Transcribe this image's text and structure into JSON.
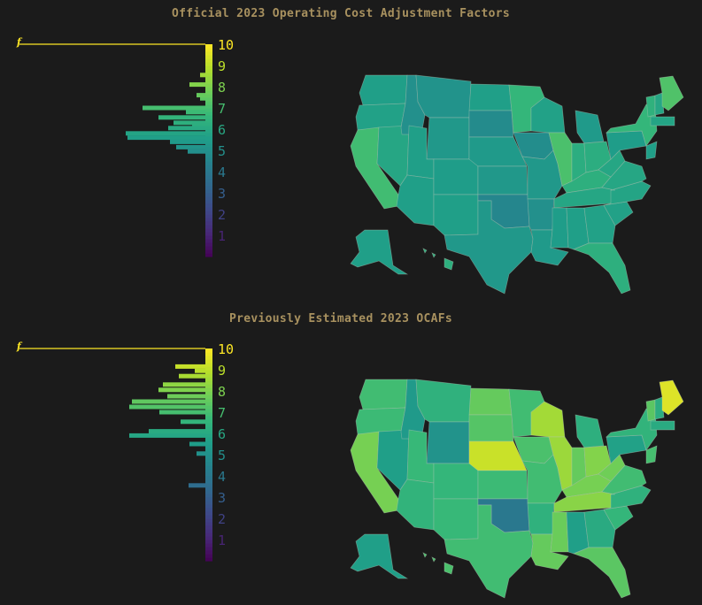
{
  "panels": [
    {
      "title": "Official 2023 Operating Cost Adjustment Factors",
      "histogram_label": "f",
      "colorbar_ticks": [
        "1",
        "2",
        "3",
        "4",
        "5",
        "6",
        "7",
        "8",
        "9",
        "10"
      ],
      "histogram_bins": [
        {
          "v": 7.45,
          "n": 6
        },
        {
          "v": 7.0,
          "n": 71
        },
        {
          "v": 6.8,
          "n": 22
        },
        {
          "v": 6.55,
          "n": 53
        },
        {
          "v": 6.3,
          "n": 36
        },
        {
          "v": 6.05,
          "n": 42
        },
        {
          "v": 5.8,
          "n": 90
        },
        {
          "v": 5.6,
          "n": 88
        },
        {
          "v": 5.4,
          "n": 40
        },
        {
          "v": 5.15,
          "n": 33
        },
        {
          "v": 4.95,
          "n": 20
        },
        {
          "v": 8.1,
          "n": 18
        },
        {
          "v": 8.55,
          "n": 6
        },
        {
          "v": 7.6,
          "n": 10
        },
        {
          "v": 6.25,
          "n": 15
        }
      ],
      "states": [
        {
          "id": "WA",
          "v": 5.6
        },
        {
          "id": "OR",
          "v": 5.7
        },
        {
          "id": "CA",
          "v": 6.9
        },
        {
          "id": "NV",
          "v": 5.9
        },
        {
          "id": "ID",
          "v": 5.0
        },
        {
          "id": "MT",
          "v": 5.1
        },
        {
          "id": "WY",
          "v": 5.3
        },
        {
          "id": "UT",
          "v": 5.6
        },
        {
          "id": "AZ",
          "v": 5.6
        },
        {
          "id": "CO",
          "v": 5.5
        },
        {
          "id": "NM",
          "v": 5.6
        },
        {
          "id": "ND",
          "v": 5.6
        },
        {
          "id": "SD",
          "v": 4.8
        },
        {
          "id": "NE",
          "v": 5.4
        },
        {
          "id": "KS",
          "v": 5.3
        },
        {
          "id": "OK",
          "v": 4.6
        },
        {
          "id": "TX",
          "v": 5.3
        },
        {
          "id": "MN",
          "v": 6.6
        },
        {
          "id": "IA",
          "v": 4.9
        },
        {
          "id": "MO",
          "v": 5.3
        },
        {
          "id": "AR",
          "v": 5.0
        },
        {
          "id": "LA",
          "v": 5.4
        },
        {
          "id": "WI",
          "v": 5.7
        },
        {
          "id": "IL",
          "v": 7.1
        },
        {
          "id": "IN",
          "v": 6.2
        },
        {
          "id": "MI",
          "v": 5.4
        },
        {
          "id": "OH",
          "v": 6.2
        },
        {
          "id": "KY",
          "v": 6.3
        },
        {
          "id": "TN",
          "v": 5.9
        },
        {
          "id": "MS",
          "v": 5.5
        },
        {
          "id": "AL",
          "v": 5.6
        },
        {
          "id": "GA",
          "v": 5.7
        },
        {
          "id": "FL",
          "v": 6.3
        },
        {
          "id": "SC",
          "v": 5.7
        },
        {
          "id": "NC",
          "v": 5.8
        },
        {
          "id": "VA",
          "v": 5.9
        },
        {
          "id": "WV",
          "v": 5.9
        },
        {
          "id": "PA",
          "v": 5.5
        },
        {
          "id": "NY",
          "v": 6.6
        },
        {
          "id": "NJ",
          "v": 5.6
        },
        {
          "id": "VT",
          "v": 6.4
        },
        {
          "id": "NH",
          "v": 5.9
        },
        {
          "id": "ME",
          "v": 7.2
        },
        {
          "id": "MA",
          "v": 5.8
        },
        {
          "id": "AK",
          "v": 5.6
        },
        {
          "id": "HI",
          "v": 6.3
        }
      ]
    },
    {
      "title": "Previously Estimated 2023 OCAFs",
      "histogram_label": "f",
      "colorbar_ticks": [
        "1",
        "2",
        "3",
        "4",
        "5",
        "6",
        "7",
        "8",
        "9",
        "10"
      ],
      "histogram_bins": [
        {
          "v": 9.15,
          "n": 34
        },
        {
          "v": 8.7,
          "n": 30
        },
        {
          "v": 8.3,
          "n": 48
        },
        {
          "v": 8.05,
          "n": 53
        },
        {
          "v": 7.75,
          "n": 43
        },
        {
          "v": 7.5,
          "n": 83
        },
        {
          "v": 7.25,
          "n": 86
        },
        {
          "v": 7.0,
          "n": 52
        },
        {
          "v": 6.55,
          "n": 28
        },
        {
          "v": 6.1,
          "n": 64
        },
        {
          "v": 5.9,
          "n": 86
        },
        {
          "v": 5.5,
          "n": 18
        },
        {
          "v": 5.05,
          "n": 10
        },
        {
          "v": 3.55,
          "n": 19
        },
        {
          "v": 8.95,
          "n": 12
        }
      ],
      "states": [
        {
          "id": "WA",
          "v": 6.9
        },
        {
          "id": "OR",
          "v": 6.8
        },
        {
          "id": "CA",
          "v": 7.9
        },
        {
          "id": "NV",
          "v": 5.6
        },
        {
          "id": "ID",
          "v": 5.4
        },
        {
          "id": "MT",
          "v": 6.4
        },
        {
          "id": "WY",
          "v": 5.1
        },
        {
          "id": "UT",
          "v": 6.7
        },
        {
          "id": "AZ",
          "v": 6.5
        },
        {
          "id": "CO",
          "v": 6.6
        },
        {
          "id": "NM",
          "v": 6.7
        },
        {
          "id": "ND",
          "v": 7.6
        },
        {
          "id": "SD",
          "v": 7.3
        },
        {
          "id": "NE",
          "v": 9.2
        },
        {
          "id": "KS",
          "v": 6.8
        },
        {
          "id": "OK",
          "v": 4.0
        },
        {
          "id": "TX",
          "v": 6.9
        },
        {
          "id": "MN",
          "v": 6.9
        },
        {
          "id": "IA",
          "v": 7.1
        },
        {
          "id": "MO",
          "v": 6.9
        },
        {
          "id": "AR",
          "v": 6.4
        },
        {
          "id": "LA",
          "v": 7.6
        },
        {
          "id": "WI",
          "v": 8.6
        },
        {
          "id": "IL",
          "v": 8.5
        },
        {
          "id": "IN",
          "v": 7.6
        },
        {
          "id": "MI",
          "v": 6.3
        },
        {
          "id": "OH",
          "v": 8.1
        },
        {
          "id": "KY",
          "v": 7.9
        },
        {
          "id": "TN",
          "v": 8.2
        },
        {
          "id": "MS",
          "v": 7.7
        },
        {
          "id": "AL",
          "v": 5.6
        },
        {
          "id": "GA",
          "v": 6.1
        },
        {
          "id": "FL",
          "v": 7.4
        },
        {
          "id": "SC",
          "v": 6.6
        },
        {
          "id": "NC",
          "v": 6.4
        },
        {
          "id": "VA",
          "v": 6.9
        },
        {
          "id": "WV",
          "v": 7.8
        },
        {
          "id": "PA",
          "v": 5.7
        },
        {
          "id": "NY",
          "v": 6.5
        },
        {
          "id": "NJ",
          "v": 7.0
        },
        {
          "id": "VT",
          "v": 7.4
        },
        {
          "id": "NH",
          "v": 6.2
        },
        {
          "id": "ME",
          "v": 9.5
        },
        {
          "id": "MA",
          "v": 6.1
        },
        {
          "id": "AK",
          "v": 5.6
        },
        {
          "id": "HI",
          "v": 7.1
        }
      ]
    }
  ]
}
